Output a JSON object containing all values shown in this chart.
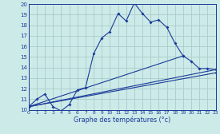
{
  "xlabel": "Graphe des températures (°c)",
  "bg_color": "#cceae7",
  "grid_color": "#aacccc",
  "line_color": "#1a3a9a",
  "hours": [
    0,
    1,
    2,
    3,
    4,
    5,
    6,
    7,
    8,
    9,
    10,
    11,
    12,
    13,
    14,
    15,
    16,
    17,
    18,
    19,
    20,
    21,
    22,
    23
  ],
  "temp_main": [
    10.3,
    11.0,
    11.5,
    10.3,
    9.9,
    10.5,
    11.9,
    12.1,
    15.3,
    16.8,
    17.4,
    19.1,
    18.4,
    20.1,
    19.1,
    18.3,
    18.5,
    17.8,
    16.3,
    15.1,
    14.6,
    13.9,
    13.9,
    13.8
  ],
  "line2_x": [
    0,
    19
  ],
  "line2_y": [
    10.3,
    15.1
  ],
  "line3_x": [
    0,
    23
  ],
  "line3_y": [
    10.3,
    13.8
  ],
  "line4_x": [
    0,
    23
  ],
  "line4_y": [
    10.3,
    13.5
  ],
  "ylim": [
    10,
    20
  ],
  "xlim": [
    0,
    23
  ]
}
